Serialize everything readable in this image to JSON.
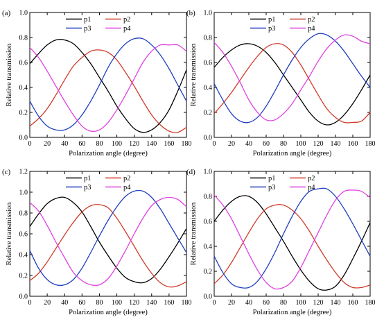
{
  "chart_data": [
    {
      "panel_label": "(a)",
      "type": "line",
      "xlabel": "Polarization angle (degree)",
      "ylabel": "Relative transmission",
      "xlim": [
        0,
        180
      ],
      "ylim": [
        0.0,
        1.0
      ],
      "xticks": [
        "0",
        "20",
        "40",
        "60",
        "80",
        "100",
        "120",
        "140",
        "160",
        "180"
      ],
      "yticks": [
        "0.0",
        "0.2",
        "0.4",
        "0.6",
        "0.8",
        "1.0"
      ],
      "x": [
        0,
        10,
        20,
        30,
        40,
        50,
        60,
        70,
        80,
        90,
        100,
        110,
        120,
        130,
        140,
        150,
        160,
        170,
        180
      ],
      "series": [
        {
          "name": "p1",
          "color": "#000000",
          "values": [
            0.59,
            0.67,
            0.74,
            0.78,
            0.78,
            0.75,
            0.68,
            0.59,
            0.48,
            0.37,
            0.25,
            0.15,
            0.07,
            0.04,
            0.06,
            0.12,
            0.22,
            0.37,
            0.54
          ]
        },
        {
          "name": "p2",
          "color": "#d03a2a",
          "values": [
            0.09,
            0.15,
            0.23,
            0.34,
            0.46,
            0.57,
            0.64,
            0.69,
            0.7,
            0.68,
            0.62,
            0.52,
            0.41,
            0.29,
            0.18,
            0.1,
            0.05,
            0.04,
            0.08
          ]
        },
        {
          "name": "p3",
          "color": "#1f3fbf",
          "values": [
            0.29,
            0.17,
            0.09,
            0.06,
            0.06,
            0.1,
            0.18,
            0.29,
            0.42,
            0.56,
            0.67,
            0.75,
            0.79,
            0.79,
            0.74,
            0.66,
            0.55,
            0.42,
            0.29
          ]
        },
        {
          "name": "p4",
          "color": "#e040e0",
          "values": [
            0.72,
            0.64,
            0.53,
            0.41,
            0.29,
            0.18,
            0.09,
            0.05,
            0.06,
            0.12,
            0.22,
            0.34,
            0.47,
            0.6,
            0.69,
            0.74,
            0.74,
            0.74,
            0.69
          ]
        }
      ]
    },
    {
      "panel_label": "(b)",
      "type": "line",
      "xlabel": "Polarization angle (degree)",
      "ylabel": "Relative transmission",
      "xlim": [
        0,
        180
      ],
      "ylim": [
        0.0,
        1.0
      ],
      "xticks": [
        "0",
        "20",
        "40",
        "60",
        "80",
        "100",
        "120",
        "140",
        "160",
        "180"
      ],
      "yticks": [
        "0.0",
        "0.2",
        "0.4",
        "0.6",
        "0.8",
        "1.0"
      ],
      "x": [
        0,
        10,
        20,
        30,
        40,
        50,
        60,
        70,
        80,
        90,
        100,
        110,
        120,
        130,
        140,
        150,
        160,
        170,
        180
      ],
      "series": [
        {
          "name": "p1",
          "color": "#000000",
          "values": [
            0.56,
            0.64,
            0.7,
            0.74,
            0.75,
            0.73,
            0.68,
            0.6,
            0.5,
            0.4,
            0.3,
            0.2,
            0.13,
            0.1,
            0.12,
            0.18,
            0.27,
            0.38,
            0.5
          ]
        },
        {
          "name": "p2",
          "color": "#d03a2a",
          "values": [
            0.19,
            0.27,
            0.36,
            0.46,
            0.56,
            0.65,
            0.72,
            0.75,
            0.74,
            0.68,
            0.58,
            0.46,
            0.34,
            0.23,
            0.16,
            0.12,
            0.12,
            0.13,
            0.2
          ]
        },
        {
          "name": "p3",
          "color": "#1f3fbf",
          "values": [
            0.43,
            0.3,
            0.19,
            0.13,
            0.12,
            0.16,
            0.25,
            0.37,
            0.5,
            0.62,
            0.72,
            0.79,
            0.83,
            0.82,
            0.77,
            0.69,
            0.59,
            0.49,
            0.4
          ]
        },
        {
          "name": "p4",
          "color": "#e040e0",
          "values": [
            0.76,
            0.68,
            0.57,
            0.44,
            0.3,
            0.2,
            0.14,
            0.14,
            0.19,
            0.27,
            0.38,
            0.49,
            0.61,
            0.71,
            0.78,
            0.82,
            0.81,
            0.77,
            0.75
          ]
        }
      ]
    },
    {
      "panel_label": "(c)",
      "type": "line",
      "xlabel": "Polarization angle (degree)",
      "ylabel": "Relative transmission",
      "xlim": [
        0,
        180
      ],
      "ylim": [
        0.0,
        1.2
      ],
      "xticks": [
        "0",
        "20",
        "40",
        "60",
        "80",
        "100",
        "120",
        "140",
        "160",
        "180"
      ],
      "yticks": [
        "0.0",
        "0.2",
        "0.4",
        "0.6",
        "0.8",
        "1.0",
        "1.2"
      ],
      "x": [
        0,
        10,
        20,
        30,
        40,
        50,
        60,
        70,
        80,
        90,
        100,
        110,
        120,
        130,
        140,
        150,
        160,
        170,
        180
      ],
      "series": [
        {
          "name": "p1",
          "color": "#000000",
          "values": [
            0.67,
            0.79,
            0.89,
            0.94,
            0.95,
            0.9,
            0.81,
            0.67,
            0.52,
            0.39,
            0.27,
            0.18,
            0.14,
            0.13,
            0.17,
            0.26,
            0.38,
            0.51,
            0.65
          ]
        },
        {
          "name": "p2",
          "color": "#d03a2a",
          "values": [
            0.15,
            0.22,
            0.33,
            0.46,
            0.59,
            0.71,
            0.81,
            0.87,
            0.88,
            0.85,
            0.75,
            0.62,
            0.48,
            0.34,
            0.22,
            0.13,
            0.09,
            0.1,
            0.14
          ]
        },
        {
          "name": "p3",
          "color": "#1f3fbf",
          "values": [
            0.44,
            0.27,
            0.16,
            0.11,
            0.11,
            0.16,
            0.27,
            0.42,
            0.58,
            0.73,
            0.86,
            0.96,
            1.01,
            1.01,
            0.95,
            0.84,
            0.7,
            0.56,
            0.42
          ]
        },
        {
          "name": "p4",
          "color": "#e040e0",
          "values": [
            0.9,
            0.82,
            0.68,
            0.52,
            0.37,
            0.23,
            0.15,
            0.11,
            0.11,
            0.17,
            0.29,
            0.44,
            0.6,
            0.75,
            0.87,
            0.93,
            0.95,
            0.93,
            0.86
          ]
        }
      ]
    },
    {
      "panel_label": "(d)",
      "type": "line",
      "xlabel": "Polarization angle (degree)",
      "ylabel": "Relative transmission",
      "xlim": [
        0,
        180
      ],
      "ylim": [
        0.0,
        1.0
      ],
      "xticks": [
        "0",
        "20",
        "40",
        "60",
        "80",
        "100",
        "120",
        "140",
        "160",
        "180"
      ],
      "yticks": [
        "0.0",
        "0.2",
        "0.4",
        "0.6",
        "0.8",
        "1.0"
      ],
      "x": [
        0,
        10,
        20,
        30,
        40,
        50,
        60,
        70,
        80,
        90,
        100,
        110,
        120,
        130,
        140,
        150,
        160,
        170,
        180
      ],
      "series": [
        {
          "name": "p1",
          "color": "#000000",
          "values": [
            0.6,
            0.69,
            0.76,
            0.8,
            0.8,
            0.75,
            0.66,
            0.55,
            0.44,
            0.32,
            0.21,
            0.12,
            0.06,
            0.05,
            0.08,
            0.17,
            0.3,
            0.44,
            0.59
          ]
        },
        {
          "name": "p2",
          "color": "#d03a2a",
          "values": [
            0.1,
            0.17,
            0.27,
            0.39,
            0.51,
            0.62,
            0.7,
            0.73,
            0.73,
            0.69,
            0.62,
            0.52,
            0.4,
            0.29,
            0.19,
            0.11,
            0.07,
            0.07,
            0.09
          ]
        },
        {
          "name": "p3",
          "color": "#1f3fbf",
          "values": [
            0.32,
            0.19,
            0.1,
            0.07,
            0.07,
            0.12,
            0.22,
            0.35,
            0.5,
            0.64,
            0.76,
            0.84,
            0.86,
            0.86,
            0.8,
            0.7,
            0.58,
            0.45,
            0.32
          ]
        },
        {
          "name": "p4",
          "color": "#e040e0",
          "values": [
            0.81,
            0.73,
            0.62,
            0.48,
            0.34,
            0.21,
            0.11,
            0.06,
            0.07,
            0.12,
            0.23,
            0.37,
            0.51,
            0.65,
            0.77,
            0.84,
            0.85,
            0.84,
            0.79
          ]
        }
      ]
    }
  ]
}
